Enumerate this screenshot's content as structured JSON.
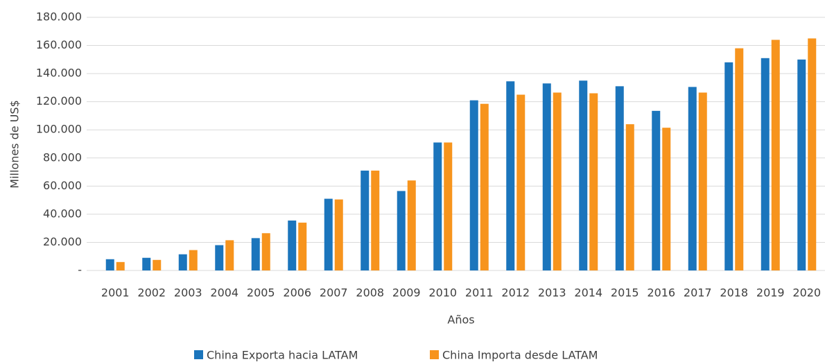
{
  "chart_data": {
    "type": "bar",
    "x_label": "Años",
    "y_label": "Millones de US$",
    "categories": [
      "2001",
      "2002",
      "2003",
      "2004",
      "2005",
      "2006",
      "2007",
      "2008",
      "2009",
      "2010",
      "2011",
      "2012",
      "2013",
      "2014",
      "2015",
      "2016",
      "2017",
      "2018",
      "2019",
      "2020"
    ],
    "series": [
      {
        "name": "China Exporta hacia LATAM",
        "color": "#1b75bc",
        "values": [
          8000,
          9000,
          11500,
          18000,
          23000,
          35500,
          51000,
          71000,
          56500,
          91000,
          121000,
          134500,
          133000,
          135000,
          131000,
          113500,
          130500,
          148000,
          151000,
          150000
        ]
      },
      {
        "name": "China Importa desde LATAM",
        "color": "#f7941d",
        "values": [
          6000,
          7500,
          14500,
          21500,
          26500,
          34000,
          50500,
          71000,
          64000,
          91000,
          118500,
          125000,
          126500,
          126000,
          104000,
          101500,
          126500,
          158000,
          164000,
          165000
        ]
      }
    ],
    "ylim": [
      0,
      180000
    ],
    "yticks": [
      {
        "value": 0,
        "label": "-"
      },
      {
        "value": 20000,
        "label": "20.000"
      },
      {
        "value": 40000,
        "label": "40.000"
      },
      {
        "value": 60000,
        "label": "60.000"
      },
      {
        "value": 80000,
        "label": "80.000"
      },
      {
        "value": 100000,
        "label": "100.000"
      },
      {
        "value": 120000,
        "label": "120.000"
      },
      {
        "value": 140000,
        "label": "140.000"
      },
      {
        "value": 160000,
        "label": "160.000"
      },
      {
        "value": 180000,
        "label": "180.000"
      }
    ],
    "grid": true,
    "legend": "bottom"
  }
}
